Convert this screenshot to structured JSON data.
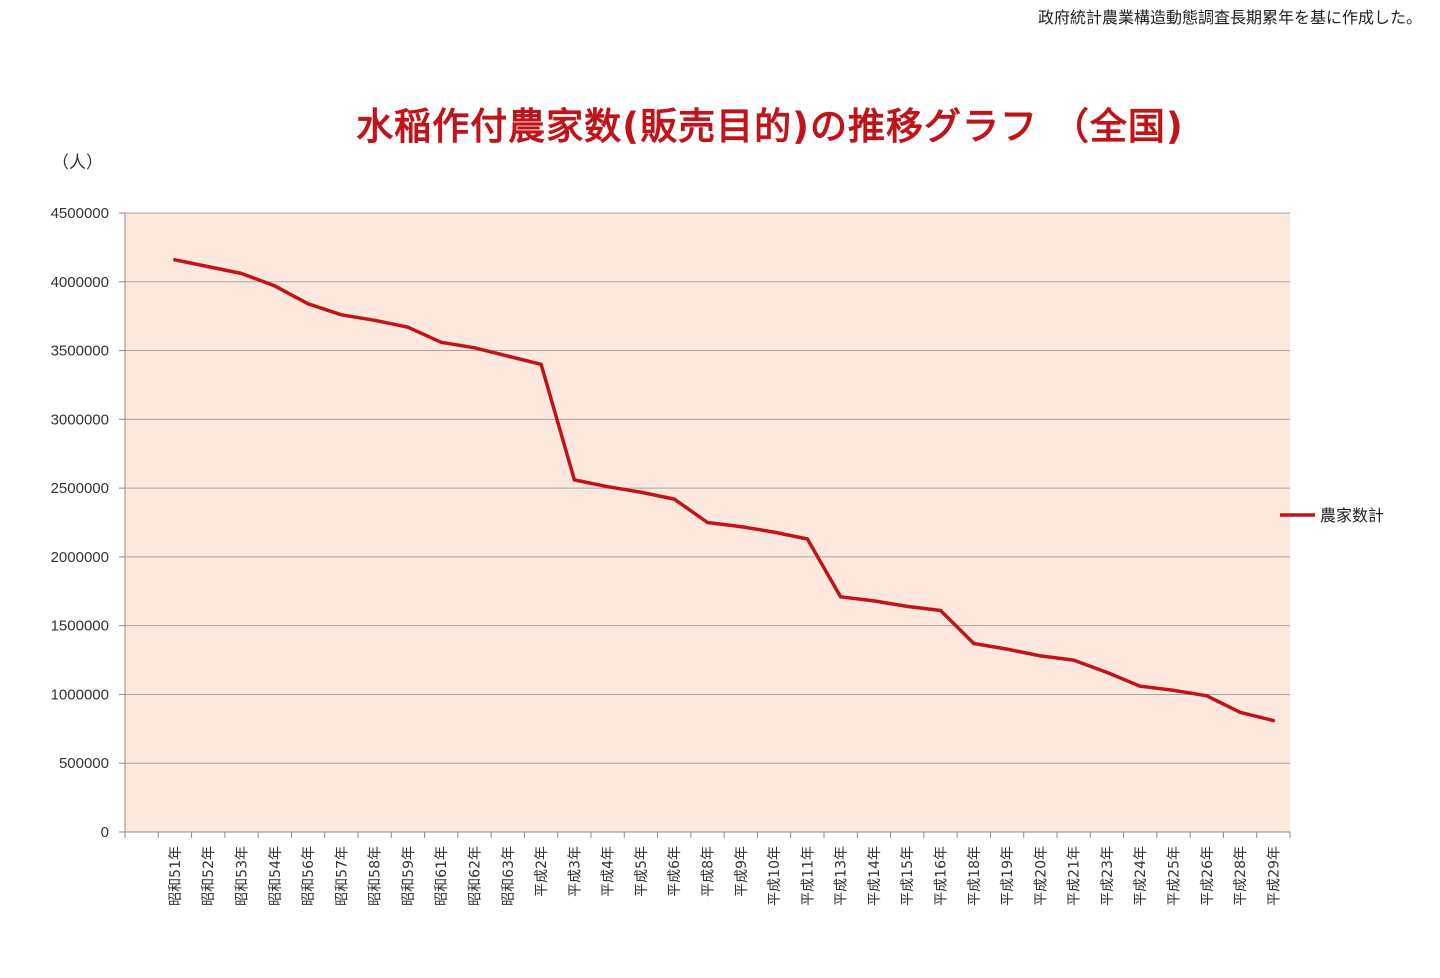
{
  "source_note": "政府統計農業構造動態調査長期累年を基に作成した。",
  "chart_data": {
    "type": "line",
    "title": "水稲作付農家数(販売目的)の推移グラフ （全国)",
    "ylabel": "（人）",
    "xlabel": "",
    "ylim": [
      0,
      4500000
    ],
    "yticks": [
      0,
      500000,
      1000000,
      1500000,
      2000000,
      2500000,
      3000000,
      3500000,
      4000000,
      4500000
    ],
    "grid": true,
    "legend_position": "right",
    "categories": [
      "昭和51年",
      "昭和52年",
      "昭和53年",
      "昭和54年",
      "昭和56年",
      "昭和57年",
      "昭和58年",
      "昭和59年",
      "昭和61年",
      "昭和62年",
      "昭和63年",
      "平成2年",
      "平成3年",
      "平成4年",
      "平成5年",
      "平成6年",
      "平成8年",
      "平成9年",
      "平成10年",
      "平成11年",
      "平成13年",
      "平成14年",
      "平成15年",
      "平成16年",
      "平成18年",
      "平成19年",
      "平成20年",
      "平成21年",
      "平成23年",
      "平成24年",
      "平成25年",
      "平成26年",
      "平成28年",
      "平成29年"
    ],
    "series": [
      {
        "name": "農家数計",
        "color": "#c0141a",
        "values": [
          4160000,
          4110000,
          4060000,
          3970000,
          3840000,
          3760000,
          3720000,
          3670000,
          3560000,
          3520000,
          3460000,
          3400000,
          2560000,
          2510000,
          2470000,
          2420000,
          2250000,
          2220000,
          2180000,
          2130000,
          1710000,
          1680000,
          1640000,
          1610000,
          1370000,
          1330000,
          1280000,
          1250000,
          1160000,
          1060000,
          1030000,
          990000,
          870000,
          810000
        ]
      }
    ],
    "colors": {
      "plot_background": "#fce8dc",
      "gridline": "#a6a6a6",
      "axis": "#8c8c8c"
    }
  }
}
